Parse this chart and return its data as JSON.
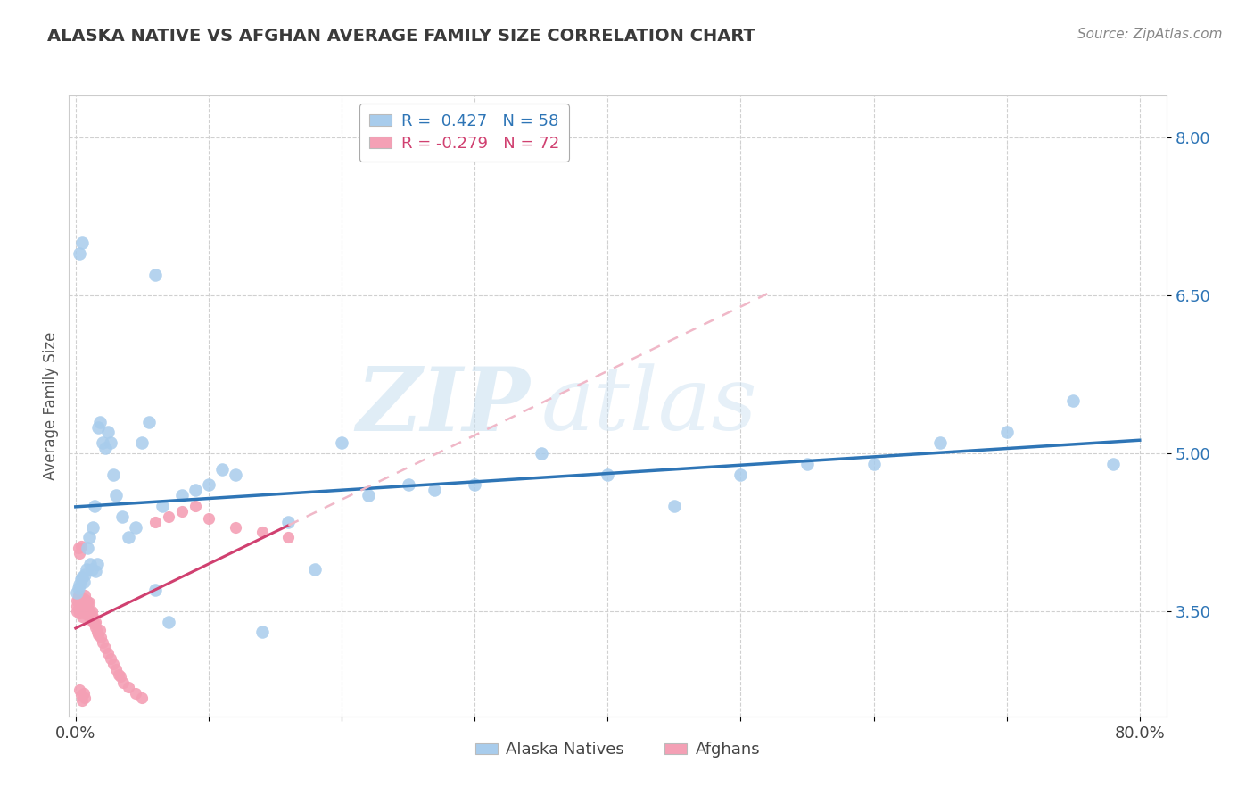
{
  "title": "ALASKA NATIVE VS AFGHAN AVERAGE FAMILY SIZE CORRELATION CHART",
  "source": "Source: ZipAtlas.com",
  "ylabel": "Average Family Size",
  "yticks": [
    3.5,
    5.0,
    6.5,
    8.0
  ],
  "ylim": [
    2.5,
    8.4
  ],
  "xlim": [
    -0.005,
    0.82
  ],
  "title_color": "#3a3a3a",
  "title_fontsize": 14,
  "watermark_zip": "ZIP",
  "watermark_atlas": "atlas",
  "blue_color": "#A8CCEC",
  "blue_line_color": "#2E75B6",
  "pink_color": "#F4A0B5",
  "pink_line_color": "#D04070",
  "pink_dash_color": "#F0B8C8",
  "legend_r1": "R =  0.427   N = 58",
  "legend_r2": "R = -0.279   N = 72",
  "legend_label1": "Alaska Natives",
  "legend_label2": "Afghans",
  "alaska_x": [
    0.001,
    0.002,
    0.003,
    0.004,
    0.005,
    0.006,
    0.007,
    0.008,
    0.009,
    0.01,
    0.011,
    0.012,
    0.013,
    0.014,
    0.015,
    0.016,
    0.017,
    0.018,
    0.02,
    0.022,
    0.024,
    0.026,
    0.028,
    0.03,
    0.035,
    0.04,
    0.045,
    0.05,
    0.055,
    0.06,
    0.065,
    0.07,
    0.08,
    0.09,
    0.1,
    0.11,
    0.12,
    0.14,
    0.16,
    0.18,
    0.2,
    0.22,
    0.25,
    0.27,
    0.3,
    0.35,
    0.4,
    0.45,
    0.5,
    0.55,
    0.6,
    0.65,
    0.7,
    0.75,
    0.78,
    0.003,
    0.005,
    0.06
  ],
  "alaska_y": [
    3.68,
    3.72,
    3.75,
    3.8,
    3.82,
    3.78,
    3.85,
    3.9,
    4.1,
    4.2,
    3.95,
    3.9,
    4.3,
    4.5,
    3.88,
    3.95,
    5.25,
    5.3,
    5.1,
    5.05,
    5.2,
    5.1,
    4.8,
    4.6,
    4.4,
    4.2,
    4.3,
    5.1,
    5.3,
    6.7,
    4.5,
    3.4,
    4.6,
    4.65,
    4.7,
    4.85,
    4.8,
    3.3,
    4.35,
    3.9,
    5.1,
    4.6,
    4.7,
    4.65,
    4.7,
    5.0,
    4.8,
    4.5,
    4.8,
    4.9,
    4.9,
    5.1,
    5.2,
    5.5,
    4.9,
    6.9,
    7.0,
    3.7
  ],
  "afghan_x": [
    0.001,
    0.001,
    0.001,
    0.002,
    0.002,
    0.002,
    0.002,
    0.003,
    0.003,
    0.003,
    0.003,
    0.004,
    0.004,
    0.004,
    0.005,
    0.005,
    0.005,
    0.006,
    0.006,
    0.006,
    0.007,
    0.007,
    0.007,
    0.008,
    0.008,
    0.008,
    0.009,
    0.009,
    0.01,
    0.01,
    0.01,
    0.011,
    0.011,
    0.012,
    0.012,
    0.013,
    0.013,
    0.014,
    0.015,
    0.015,
    0.016,
    0.017,
    0.018,
    0.019,
    0.02,
    0.022,
    0.024,
    0.026,
    0.028,
    0.03,
    0.032,
    0.034,
    0.036,
    0.04,
    0.045,
    0.05,
    0.06,
    0.07,
    0.08,
    0.09,
    0.1,
    0.12,
    0.14,
    0.16,
    0.002,
    0.003,
    0.004,
    0.003,
    0.004,
    0.005,
    0.006,
    0.007
  ],
  "afghan_y": [
    3.5,
    3.55,
    3.6,
    3.52,
    3.58,
    3.62,
    3.65,
    3.48,
    3.55,
    3.6,
    3.65,
    3.5,
    3.58,
    3.62,
    3.45,
    3.52,
    3.6,
    3.48,
    3.55,
    3.62,
    3.5,
    3.58,
    3.65,
    3.48,
    3.55,
    3.6,
    3.52,
    3.58,
    3.45,
    3.5,
    3.58,
    3.42,
    3.48,
    3.45,
    3.5,
    3.4,
    3.45,
    3.38,
    3.35,
    3.4,
    3.3,
    3.28,
    3.32,
    3.25,
    3.2,
    3.15,
    3.1,
    3.05,
    3.0,
    2.95,
    2.9,
    2.88,
    2.82,
    2.78,
    2.72,
    2.68,
    4.35,
    4.4,
    4.45,
    4.5,
    4.38,
    4.3,
    4.25,
    4.2,
    4.1,
    4.05,
    4.12,
    2.75,
    2.7,
    2.65,
    2.72,
    2.68
  ]
}
